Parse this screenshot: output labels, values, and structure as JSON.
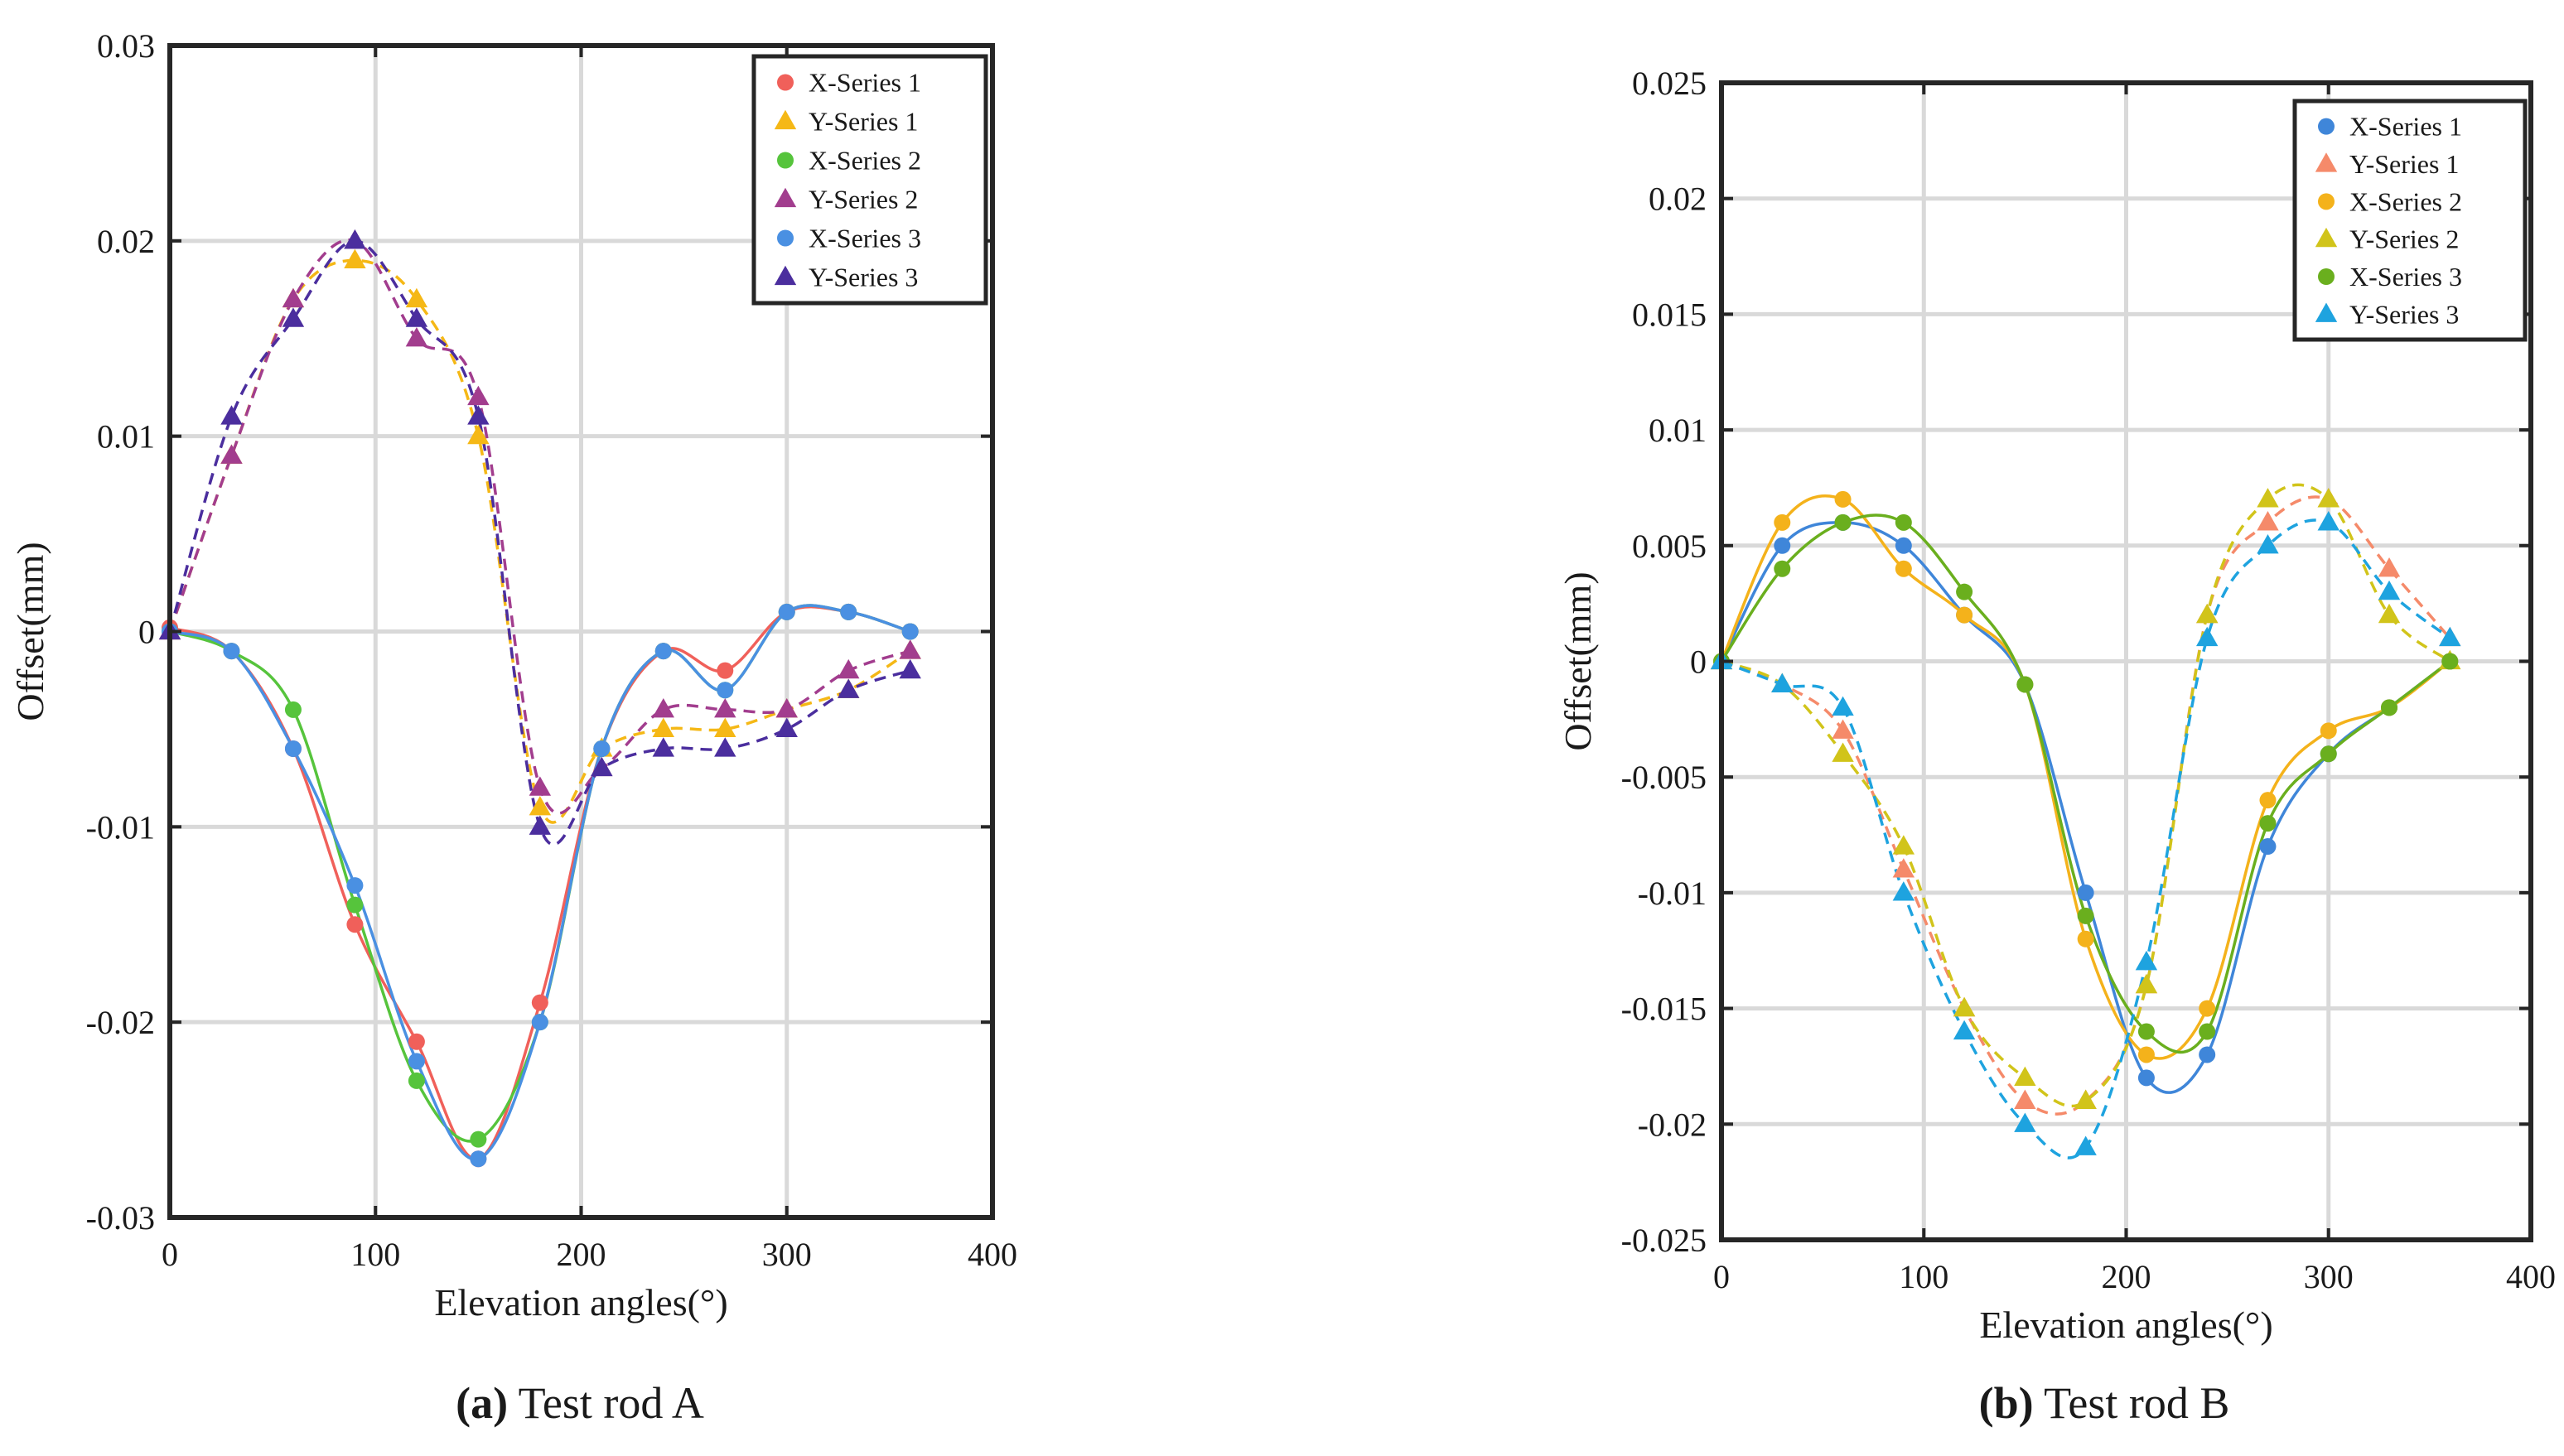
{
  "chart_data": [
    {
      "type": "line",
      "caption_tag": "(a)",
      "caption_text": "Test rod A",
      "xlabel": "Elevation angles(°)",
      "ylabel": "Offset(mm)",
      "xlim": [
        0,
        400
      ],
      "ylim": [
        -0.03,
        0.03
      ],
      "xticks": [
        0,
        100,
        200,
        300,
        400
      ],
      "yticks": [
        -0.03,
        -0.02,
        -0.01,
        0,
        0.01,
        0.02,
        0.03
      ],
      "ytick_labels": [
        "-0.03",
        "-0.02",
        "-0.01",
        "0",
        "0.01",
        "0.02",
        "0.03"
      ],
      "grid": true,
      "legend_position": "top-right",
      "series": [
        {
          "name": "X-Series 1",
          "marker": "circle",
          "dash": false,
          "color": "#f0605a",
          "x": [
            0,
            30,
            60,
            90,
            120,
            150,
            180,
            210,
            240,
            270,
            300,
            330,
            360
          ],
          "y": [
            0.0002,
            -0.001,
            -0.006,
            -0.015,
            -0.021,
            -0.027,
            -0.019,
            -0.006,
            -0.001,
            -0.002,
            0.001,
            0.001,
            0
          ]
        },
        {
          "name": "Y-Series 1",
          "marker": "triangle",
          "dash": true,
          "color": "#f5b816",
          "x": [
            0,
            30,
            60,
            90,
            120,
            150,
            180,
            210,
            240,
            270,
            300,
            330,
            360
          ],
          "y": [
            0,
            0.009,
            0.017,
            0.019,
            0.017,
            0.01,
            -0.009,
            -0.006,
            -0.005,
            -0.005,
            -0.004,
            -0.003,
            -0.001
          ]
        },
        {
          "name": "X-Series 2",
          "marker": "circle",
          "dash": false,
          "color": "#56c43c",
          "x": [
            0,
            30,
            60,
            90,
            120,
            150,
            180,
            210,
            240,
            270,
            300,
            330,
            360
          ],
          "y": [
            0,
            -0.001,
            -0.004,
            -0.014,
            -0.023,
            -0.026,
            -0.02,
            -0.006,
            -0.001,
            -0.003,
            0.001,
            0.001,
            0
          ]
        },
        {
          "name": "Y-Series 2",
          "marker": "triangle",
          "dash": true,
          "color": "#a23d8e",
          "x": [
            0,
            30,
            60,
            90,
            120,
            150,
            180,
            210,
            240,
            270,
            300,
            330,
            360
          ],
          "y": [
            0,
            0.009,
            0.017,
            0.02,
            0.015,
            0.012,
            -0.008,
            -0.007,
            -0.004,
            -0.004,
            -0.004,
            -0.002,
            -0.001
          ]
        },
        {
          "name": "X-Series 3",
          "marker": "circle",
          "dash": false,
          "color": "#4a90e2",
          "x": [
            0,
            30,
            60,
            90,
            120,
            150,
            180,
            210,
            240,
            270,
            300,
            330,
            360
          ],
          "y": [
            0,
            -0.001,
            -0.006,
            -0.013,
            -0.022,
            -0.027,
            -0.02,
            -0.006,
            -0.001,
            -0.003,
            0.001,
            0.001,
            0
          ]
        },
        {
          "name": "Y-Series 3",
          "marker": "triangle",
          "dash": true,
          "color": "#4b2e9e",
          "x": [
            0,
            30,
            60,
            90,
            120,
            150,
            180,
            210,
            240,
            270,
            300,
            330,
            360
          ],
          "y": [
            0,
            0.011,
            0.016,
            0.02,
            0.016,
            0.011,
            -0.01,
            -0.007,
            -0.006,
            -0.006,
            -0.005,
            -0.003,
            -0.002
          ]
        }
      ]
    },
    {
      "type": "line",
      "caption_tag": "(b)",
      "caption_text": "Test rod B",
      "xlabel": "Elevation angles(°)",
      "ylabel": "Offset(mm)",
      "xlim": [
        0,
        400
      ],
      "ylim": [
        -0.025,
        0.025
      ],
      "xticks": [
        0,
        100,
        200,
        300,
        400
      ],
      "yticks": [
        -0.025,
        -0.02,
        -0.015,
        -0.01,
        -0.005,
        0,
        0.005,
        0.01,
        0.015,
        0.02,
        0.025
      ],
      "ytick_labels": [
        "-0.025",
        "-0.02",
        "-0.015",
        "-0.01",
        "-0.005",
        "0",
        "0.005",
        "0.01",
        "0.015",
        "0.02",
        "0.025"
      ],
      "grid": true,
      "legend_position": "top-right",
      "series": [
        {
          "name": "X-Series 1",
          "marker": "circle",
          "dash": false,
          "color": "#3f86d9",
          "x": [
            0,
            30,
            60,
            90,
            120,
            150,
            180,
            210,
            240,
            270,
            300,
            330,
            360
          ],
          "y": [
            0,
            0.005,
            0.006,
            0.005,
            0.002,
            -0.001,
            -0.01,
            -0.018,
            -0.017,
            -0.008,
            -0.004,
            -0.002,
            0
          ]
        },
        {
          "name": "Y-Series 1",
          "marker": "triangle",
          "dash": true,
          "color": "#f58a6a",
          "x": [
            0,
            30,
            60,
            90,
            120,
            150,
            180,
            210,
            240,
            270,
            300,
            330,
            360
          ],
          "y": [
            0,
            -0.001,
            -0.003,
            -0.009,
            -0.015,
            -0.019,
            -0.019,
            -0.014,
            0.002,
            0.006,
            0.007,
            0.004,
            0.001
          ]
        },
        {
          "name": "X-Series 2",
          "marker": "circle",
          "dash": false,
          "color": "#f4b21b",
          "x": [
            0,
            30,
            60,
            90,
            120,
            150,
            180,
            210,
            240,
            270,
            300,
            330,
            360
          ],
          "y": [
            0,
            0.006,
            0.007,
            0.004,
            0.002,
            -0.001,
            -0.012,
            -0.017,
            -0.015,
            -0.006,
            -0.003,
            -0.002,
            0
          ]
        },
        {
          "name": "Y-Series 2",
          "marker": "triangle",
          "dash": true,
          "color": "#d1c41a",
          "x": [
            0,
            30,
            60,
            90,
            120,
            150,
            180,
            210,
            240,
            270,
            300,
            330,
            360
          ],
          "y": [
            0,
            -0.001,
            -0.004,
            -0.008,
            -0.015,
            -0.018,
            -0.019,
            -0.014,
            0.002,
            0.007,
            0.007,
            0.002,
            0
          ]
        },
        {
          "name": "X-Series 3",
          "marker": "circle",
          "dash": false,
          "color": "#6aaf1e",
          "x": [
            0,
            30,
            60,
            90,
            120,
            150,
            180,
            210,
            240,
            270,
            300,
            330,
            360
          ],
          "y": [
            0,
            0.004,
            0.006,
            0.006,
            0.003,
            -0.001,
            -0.011,
            -0.016,
            -0.016,
            -0.007,
            -0.004,
            -0.002,
            0
          ]
        },
        {
          "name": "Y-Series 3",
          "marker": "triangle",
          "dash": true,
          "color": "#1ea3df",
          "x": [
            0,
            30,
            60,
            90,
            120,
            150,
            180,
            210,
            240,
            270,
            300,
            330,
            360
          ],
          "y": [
            0,
            -0.001,
            -0.002,
            -0.01,
            -0.016,
            -0.02,
            -0.021,
            -0.013,
            0.001,
            0.005,
            0.006,
            0.003,
            0.001
          ]
        }
      ]
    }
  ]
}
